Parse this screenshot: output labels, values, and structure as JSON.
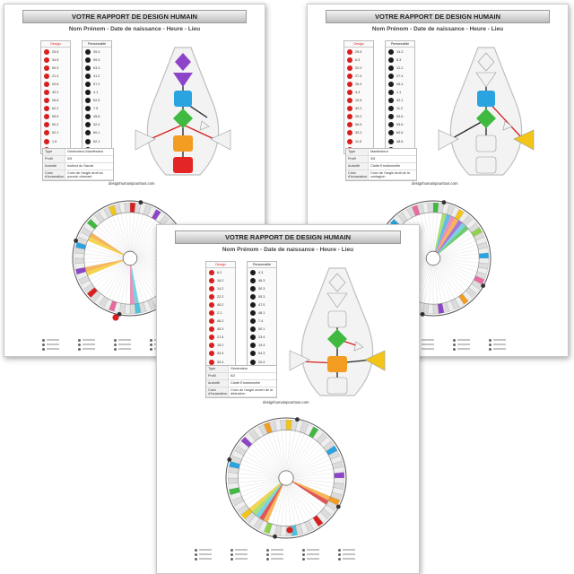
{
  "report": {
    "title": "VOTRE RAPPORT DE DESIGN HUMAIN",
    "subtitle": "Nom Prénom - Date de naissance - Heure - Lieu",
    "website": "designhumainpourtous.com",
    "design_label": "Design",
    "personality_label": "Personnalité"
  },
  "pages": [
    {
      "design": [
        "25.5",
        "34.5",
        "50.3",
        "21.4",
        "20.6",
        "42.2",
        "28.6",
        "62.2",
        "59.5",
        "50.2",
        "52.1",
        "1.5",
        "4.6"
      ],
      "personality": [
        "39.3",
        "59.3",
        "63.3",
        "41.2",
        "57.2",
        "4.1",
        "62.5",
        "7.5",
        "45.6",
        "32.4",
        "60.1",
        "52.1",
        "4.5"
      ],
      "info": [
        {
          "k": "Type",
          "v": "Générateur-Manifesteur"
        },
        {
          "k": "Profil",
          "v": "3/5"
        },
        {
          "k": "Autorité",
          "v": "Instinct du Sacral"
        },
        {
          "k": "Croix d'incarnation",
          "v": "Croix de l'angle droit du pouvoir dormant"
        }
      ]
    },
    {
      "design": [
        "29.5",
        "6.3",
        "22.2",
        "27.4",
        "26.4",
        "4.4",
        "10.6",
        "42.2",
        "29.2",
        "56.5",
        "32.2",
        "11.5",
        "6.2"
      ],
      "personality": [
        "14.3",
        "8.3",
        "12.2",
        "27.4",
        "26.4",
        "1.1",
        "32.1",
        "11.2",
        "59.6",
        "53.6",
        "60.6",
        "48.6",
        "5.5"
      ],
      "info": [
        {
          "k": "Type",
          "v": "Manifesteur"
        },
        {
          "k": "Profil",
          "v": "3/5"
        },
        {
          "k": "Autorité",
          "v": "Clarté Emotionnelle"
        },
        {
          "k": "Croix d'incarnation",
          "v": "Croix de l'angle droit de la contagion"
        }
      ]
    },
    {
      "design": [
        "6.2",
        "16.2",
        "14.2",
        "22.2",
        "45.2",
        "2.1",
        "46.2",
        "45.3",
        "21.4",
        "15.2",
        "34.4",
        "39.4",
        "9.5"
      ],
      "personality": [
        "4.3",
        "46.3",
        "30.3",
        "55.3",
        "47.5",
        "48.1",
        "7.4",
        "50.1",
        "23.4",
        "19.4",
        "54.3",
        "20.4",
        "5.5"
      ],
      "info": [
        {
          "k": "Type",
          "v": "Générateur"
        },
        {
          "k": "Profil",
          "v": "6/2"
        },
        {
          "k": "Autorité",
          "v": "Clarté Emotionnelle"
        },
        {
          "k": "Croix d'incarnation",
          "v": "Croix de l'angle ouvert de la déduction"
        }
      ]
    }
  ]
}
